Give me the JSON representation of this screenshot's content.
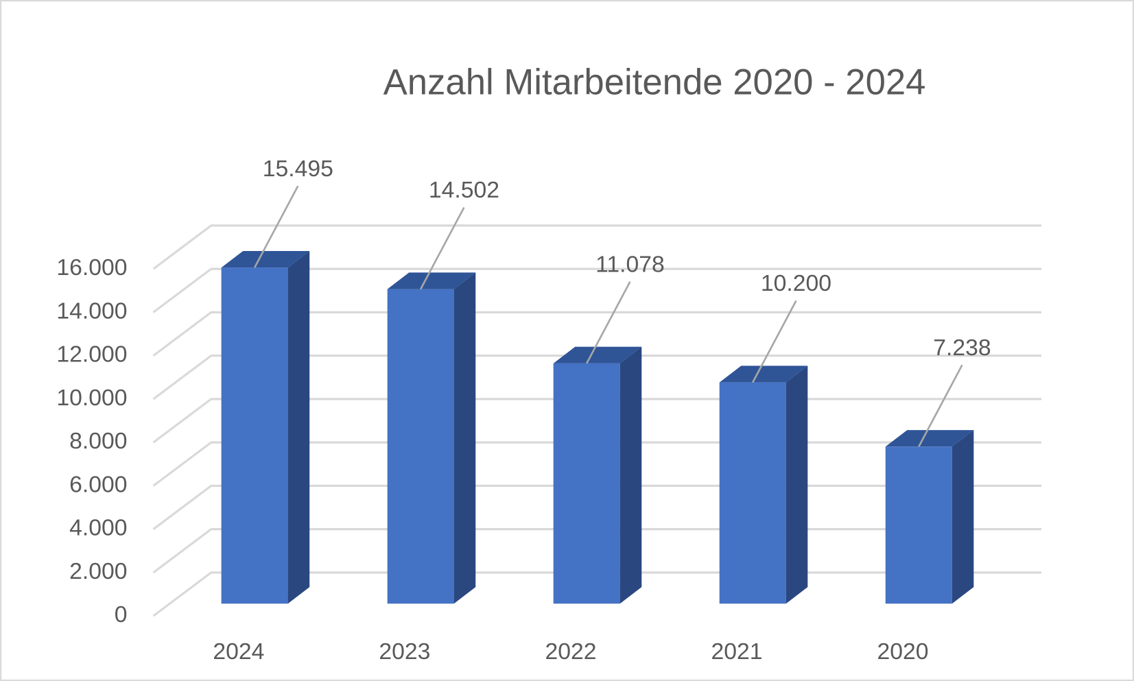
{
  "chart_data": {
    "type": "bar3d",
    "title": "Anzahl Mitarbeitende 2020 - 2024",
    "categories": [
      "2024",
      "2023",
      "2022",
      "2021",
      "2020"
    ],
    "values": [
      15495,
      14502,
      11078,
      10200,
      7238
    ],
    "value_labels": [
      "15.495",
      "14.502",
      "11.078",
      "10.200",
      "7.238"
    ],
    "color": "#4472c4",
    "ylim": [
      0,
      16000
    ],
    "yticks": [
      0,
      {
        "value": 2000,
        "label": "2.000"
      },
      {
        "value": 4000,
        "label": "4.000"
      },
      {
        "value": 6000,
        "label": "6.000"
      },
      {
        "value": 8000,
        "label": "8.000"
      },
      {
        "value": 10000,
        "label": "10.000"
      },
      {
        "value": 12000,
        "label": "12.000"
      },
      {
        "value": 14000,
        "label": "14.000"
      },
      {
        "value": 16000,
        "label": "16.000"
      }
    ],
    "grid": true
  }
}
